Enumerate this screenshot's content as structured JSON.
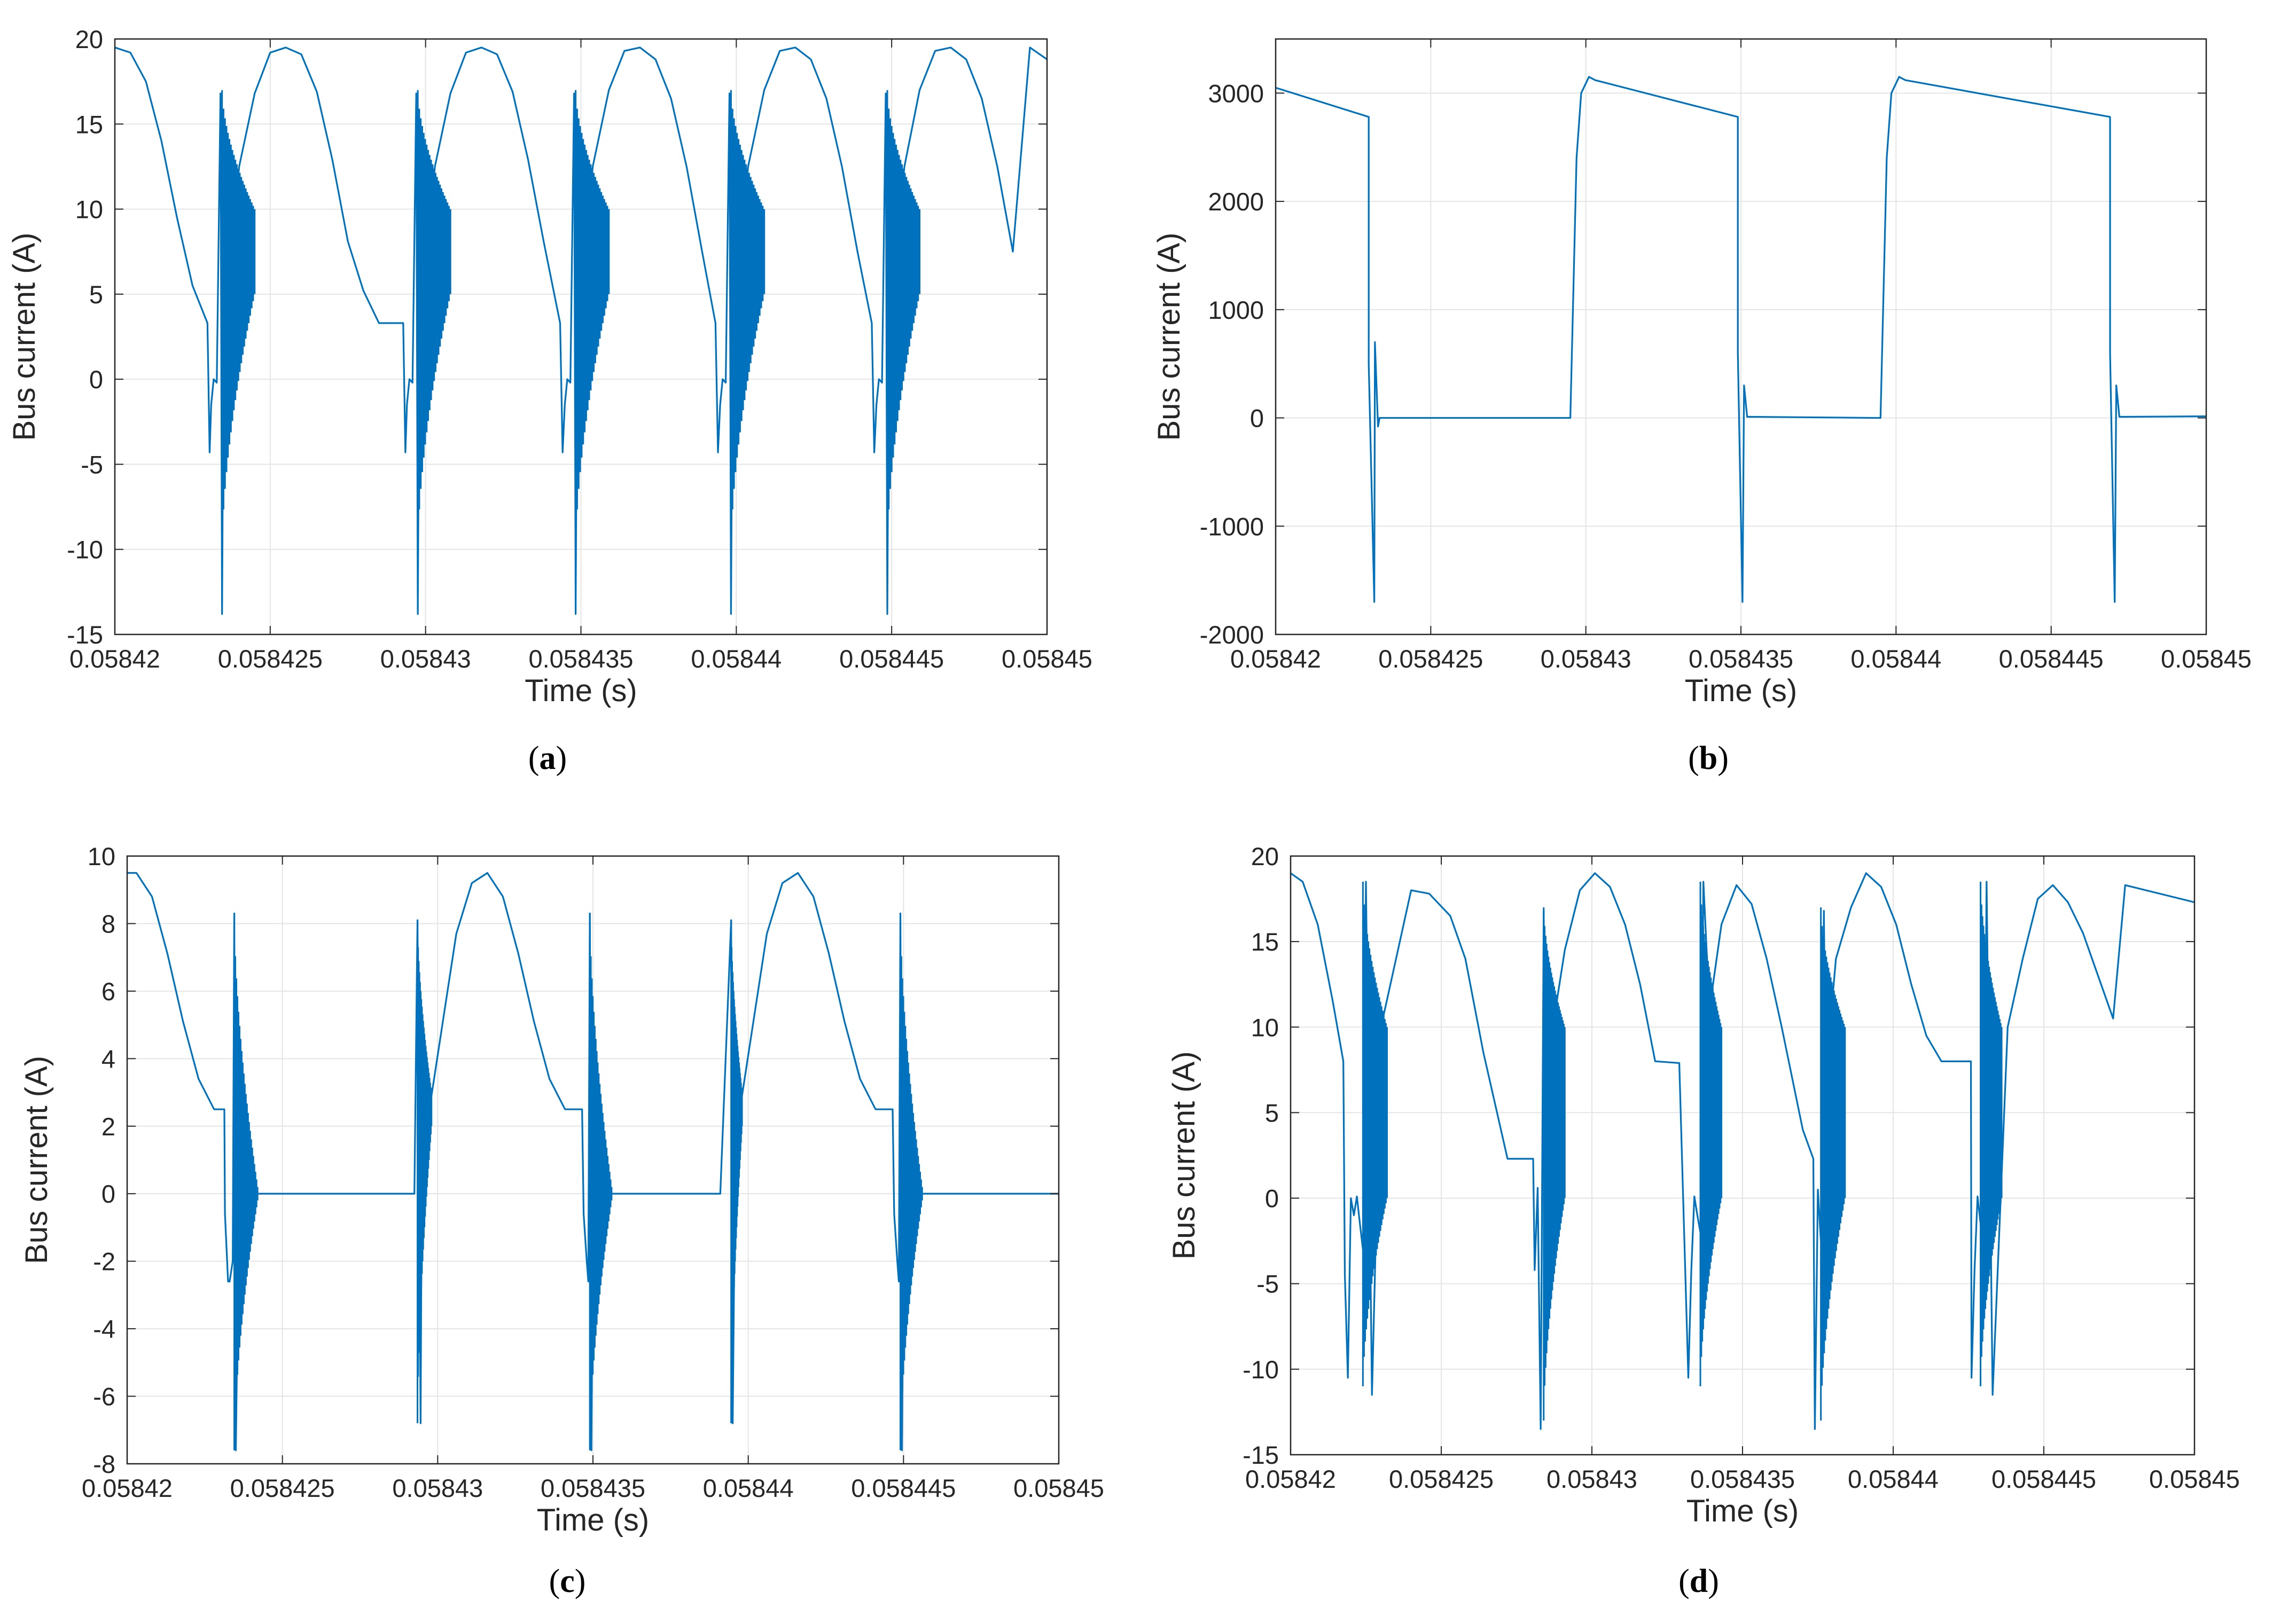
{
  "figure": {
    "colors": {
      "line": "#0072BD",
      "grid": "#e5e5e5",
      "axis": "#262626",
      "background": "#ffffff"
    }
  },
  "chart_data": [
    {
      "panel_label": "(a)",
      "type": "line",
      "xlabel": "Time (s)",
      "ylabel": "Bus current (A)",
      "xlim": [
        0.05842,
        0.05845
      ],
      "ylim": [
        -15,
        20
      ],
      "xticks": [
        0.05842,
        0.058425,
        0.05843,
        0.058435,
        0.05844,
        0.058445,
        0.05845
      ],
      "xtick_labels": [
        "0.05842",
        "0.058425",
        "0.05843",
        "0.058435",
        "0.05844",
        "0.058445",
        "0.05845"
      ],
      "yticks": [
        -15,
        -10,
        -5,
        0,
        5,
        10,
        15,
        20
      ],
      "ytick_labels": [
        "-15",
        "-10",
        "-5",
        "0",
        "5",
        "10",
        "15",
        "20"
      ],
      "grid": true,
      "series": [
        {
          "name": "Bus current",
          "x": [
            0.05842,
            0.0584205,
            0.058421,
            0.0584215,
            0.058422,
            0.0584225,
            0.05842298,
            0.05842305,
            0.0584231,
            0.05842318,
            0.05842328,
            0.0584234,
            0.05842345,
            0.0584235,
            0.0584236,
            0.0584238,
            0.058424,
            0.0584245,
            0.058425,
            0.0584255,
            0.058426,
            0.0584265,
            0.058427,
            0.0584275,
            0.058428,
            0.0584285,
            0.05842928,
            0.05842935,
            0.0584294,
            0.05842948,
            0.05842958,
            0.0584297,
            0.05842975,
            0.0584298,
            0.0584299,
            0.0584301,
            0.0584303,
            0.0584308,
            0.0584313,
            0.0584318,
            0.0584323,
            0.0584328,
            0.0584333,
            0.0584338,
            0.05843433,
            0.05843441,
            0.05843448,
            0.05843456,
            0.05843466,
            0.05843478,
            0.05843483,
            0.05843488,
            0.05843498,
            0.05843518,
            0.05843538,
            0.0584359,
            0.0584364,
            0.0584369,
            0.0584374,
            0.0584379,
            0.0584384,
            0.0584389,
            0.05843933,
            0.05843941,
            0.05843948,
            0.05843956,
            0.05843966,
            0.05843978,
            0.05843983,
            0.05843988,
            0.05843998,
            0.05844018,
            0.05844038,
            0.0584409,
            0.0584414,
            0.0584419,
            0.0584424,
            0.0584429,
            0.0584434,
            0.0584439,
            0.05844436,
            0.05844444,
            0.05844451,
            0.05844459,
            0.05844469,
            0.05844481,
            0.05844486,
            0.05844491,
            0.05844501,
            0.05844521,
            0.05844541,
            0.0584459,
            0.0584464,
            0.0584469,
            0.0584474,
            0.0584479,
            0.0584484,
            0.0584489,
            0.05844945,
            0.05845
          ],
          "y": [
            19.5,
            19.2,
            17.5,
            14,
            9.5,
            5.5,
            3.3,
            -4.3,
            -1.5,
            0,
            -0.2,
            16.8,
            -13.8,
            3.5,
            10,
            8.6,
            12.5,
            16.8,
            19.2,
            19.5,
            19.1,
            16.9,
            12.9,
            8.1,
            5.2,
            3.3,
            3.3,
            -4.3,
            -1.5,
            0,
            -0.2,
            16.8,
            -13.8,
            3.5,
            10,
            8.6,
            12.5,
            16.8,
            19.2,
            19.5,
            19.1,
            16.9,
            12.9,
            8.1,
            3.3,
            -4.3,
            -1.5,
            0,
            -0.2,
            16.8,
            -13.8,
            3.5,
            10,
            8.6,
            12.5,
            17,
            19.3,
            19.5,
            18.8,
            16.5,
            12.5,
            7.5,
            3.3,
            -4.3,
            -1.5,
            0,
            -0.2,
            16.8,
            -13.8,
            3.5,
            10,
            8.6,
            12.5,
            17,
            19.3,
            19.5,
            18.8,
            16.5,
            12.5,
            7.5,
            3.3,
            -4.3,
            -1.5,
            0,
            -0.2,
            16.8,
            -13.8,
            3.5,
            10,
            8.6,
            12.5,
            17,
            19.3,
            19.5,
            18.8,
            16.5,
            12.5,
            7.5,
            19.5,
            18.8
          ]
        }
      ],
      "oscillation_bands": [
        {
          "x0": 0.05842345,
          "x1": 0.0584245,
          "low": [
            -10,
            5
          ],
          "high": [
            17,
            10
          ]
        },
        {
          "x0": 0.05842975,
          "x1": 0.0584308,
          "low": [
            -10,
            5
          ],
          "high": [
            17,
            10
          ]
        },
        {
          "x0": 0.05843483,
          "x1": 0.0584359,
          "low": [
            -10,
            5
          ],
          "high": [
            17,
            10
          ]
        },
        {
          "x0": 0.05843983,
          "x1": 0.0584409,
          "low": [
            -10,
            5
          ],
          "high": [
            17,
            10
          ]
        },
        {
          "x0": 0.05844486,
          "x1": 0.0584459,
          "low": [
            -10,
            5
          ],
          "high": [
            17,
            10
          ]
        }
      ]
    },
    {
      "panel_label": "(b)",
      "type": "line",
      "xlabel": "Time (s)",
      "ylabel": "Bus current (A)",
      "xlim": [
        0.05842,
        0.05845
      ],
      "ylim": [
        -2000,
        3500
      ],
      "xticks": [
        0.05842,
        0.058425,
        0.05843,
        0.058435,
        0.05844,
        0.058445,
        0.05845
      ],
      "xtick_labels": [
        "0.05842",
        "0.058425",
        "0.05843",
        "0.058435",
        "0.05844",
        "0.058445",
        "0.05845"
      ],
      "yticks": [
        -2000,
        -1000,
        0,
        1000,
        2000,
        3000
      ],
      "ytick_labels": [
        "-2000",
        "-1000",
        "0",
        "1000",
        "2000",
        "3000"
      ],
      "grid": true,
      "series": [
        {
          "name": "Bus current",
          "x": [
            0.05842,
            0.058423,
            0.0584230001,
            0.05842318,
            0.0584232,
            0.0584233,
            0.05842335,
            0.0584235,
            0.0584294,
            0.0584295,
            0.0584296,
            0.0584297,
            0.05842985,
            0.0584301,
            0.0584303,
            0.0584349,
            0.0584349001,
            0.05843505,
            0.0584351,
            0.0584352,
            0.0584354,
            0.0584394,
            0.0584395,
            0.0584396,
            0.0584397,
            0.05843985,
            0.0584401,
            0.0584403,
            0.0584469,
            0.0584469001,
            0.05844705,
            0.0584471,
            0.0584472,
            0.0584474,
            0.05845
          ],
          "y": [
            3050,
            2780,
            500,
            -1700,
            700,
            -80,
            0,
            0,
            0,
            0,
            1200,
            2400,
            3000,
            3150,
            3120,
            2780,
            600,
            -1700,
            300,
            10,
            10,
            0,
            0,
            1200,
            2400,
            3000,
            3150,
            3120,
            2780,
            600,
            -1700,
            300,
            10,
            10,
            15
          ]
        }
      ],
      "oscillation_bands": []
    },
    {
      "panel_label": "(c)",
      "type": "line",
      "xlabel": "Time (s)",
      "ylabel": "Bus current (A)",
      "xlim": [
        0.05842,
        0.05845
      ],
      "ylim": [
        -8,
        10
      ],
      "xticks": [
        0.05842,
        0.058425,
        0.05843,
        0.058435,
        0.05844,
        0.058445,
        0.05845
      ],
      "xtick_labels": [
        "0.05842",
        "0.058425",
        "0.05843",
        "0.058435",
        "0.05844",
        "0.058445",
        "0.05845"
      ],
      "yticks": [
        -8,
        -6,
        -4,
        -2,
        0,
        2,
        4,
        6,
        8,
        10
      ],
      "ytick_labels": [
        "-8",
        "-6",
        "-4",
        "-2",
        "0",
        "2",
        "4",
        "6",
        "8",
        "10"
      ],
      "grid": true,
      "series": [
        {
          "name": "Bus current",
          "x": [
            0.05842,
            0.0584203,
            0.0584208,
            0.0584213,
            0.0584218,
            0.0584223,
            0.0584228,
            0.05842313,
            0.05842315,
            0.0584232,
            0.05842325,
            0.0584233,
            0.0584234,
            0.05842345,
            0.0584235,
            0.0584236,
            0.0584238,
            0.0584242,
            0.0584246,
            0.0584252,
            0.0584262,
            0.0584272,
            0.0584282,
            0.0584289,
            0.05842925,
            0.05842935,
            0.05842945,
            0.0584295,
            0.0584296,
            0.0584298,
            0.0584302,
            0.0584306,
            0.0584311,
            0.0584316,
            0.0584321,
            0.0584326,
            0.0584331,
            0.0584336,
            0.0584341,
            0.05843465,
            0.0584347,
            0.0584348,
            0.05843485,
            0.0584349,
            0.05843495,
            0.058435,
            0.0584352,
            0.0584356,
            0.058436,
            0.0584366,
            0.0584376,
            0.0584386,
            0.0584391,
            0.05843945,
            0.0584395,
            0.0584396,
            0.0584398,
            0.0584402,
            0.0584406,
            0.0584411,
            0.0584416,
            0.0584421,
            0.0584426,
            0.0584431,
            0.0584436,
            0.0584441,
            0.05844465,
            0.0584447,
            0.0584448,
            0.05844485,
            0.0584449,
            0.05844495,
            0.058445,
            0.0584452,
            0.0584456,
            0.058446,
            0.0584466,
            0.05845
          ],
          "y": [
            9.5,
            9.5,
            8.8,
            7.1,
            5.1,
            3.4,
            2.5,
            2.5,
            -0.6,
            -1.6,
            -2.6,
            -2.6,
            -2,
            8.3,
            -7.6,
            -0.5,
            -0.1,
            0,
            0,
            0,
            0,
            0,
            0,
            0,
            0,
            8.1,
            -6.8,
            3,
            2.6,
            2.9,
            5.3,
            7.7,
            9.2,
            9.5,
            8.8,
            7.1,
            5.1,
            3.4,
            2.5,
            2.5,
            -0.6,
            -2,
            -2.6,
            8.3,
            -7.6,
            -0.5,
            -0.1,
            0,
            0,
            0,
            0,
            0,
            0,
            8.1,
            -6.8,
            3,
            2.9,
            5.3,
            7.7,
            9.2,
            9.5,
            8.8,
            7.1,
            5.1,
            3.4,
            2.5,
            2.5,
            -0.6,
            -2,
            -2.6,
            8.3,
            -7.6,
            -0.5,
            -0.1,
            0,
            0,
            0,
            0
          ]
        }
      ],
      "oscillation_bands": [
        {
          "x0": 0.05842345,
          "x1": 0.0584242,
          "low": [
            -7.6,
            -0.2
          ],
          "high": [
            8.3,
            0.2
          ]
        },
        {
          "x0": 0.05842935,
          "x1": 0.0584298,
          "low": [
            -6.8,
            2
          ],
          "high": [
            8.1,
            3
          ]
        },
        {
          "x0": 0.0584349,
          "x1": 0.0584356,
          "low": [
            -7.6,
            -0.2
          ],
          "high": [
            8.3,
            0.2
          ]
        },
        {
          "x0": 0.05843945,
          "x1": 0.0584398,
          "low": [
            -6.8,
            2
          ],
          "high": [
            8.1,
            3
          ]
        },
        {
          "x0": 0.0584449,
          "x1": 0.0584456,
          "low": [
            -7.6,
            -0.2
          ],
          "high": [
            8.3,
            0.2
          ]
        }
      ]
    },
    {
      "panel_label": "(d)",
      "type": "line",
      "xlabel": "Time (s)",
      "ylabel": "Bus current (A)",
      "xlim": [
        0.05842,
        0.05845
      ],
      "ylim": [
        -15,
        20
      ],
      "xticks": [
        0.05842,
        0.058425,
        0.05843,
        0.058435,
        0.05844,
        0.058445,
        0.05845
      ],
      "xtick_labels": [
        "0.05842",
        "0.058425",
        "0.05843",
        "0.058435",
        "0.05844",
        "0.058445",
        "0.05845"
      ],
      "yticks": [
        -15,
        -10,
        -5,
        0,
        5,
        10,
        15,
        20
      ],
      "ytick_labels": [
        "-15",
        "-10",
        "-5",
        "0",
        "5",
        "10",
        "15",
        "20"
      ],
      "grid": true,
      "series": [
        {
          "name": "Bus current",
          "x": [
            0.05842,
            0.0584204,
            0.0584209,
            0.0584214,
            0.05842175,
            0.0584218,
            0.0584219,
            0.058422,
            0.0584221,
            0.0584222,
            0.0584223,
            0.0584224,
            0.0584225,
            0.0584227,
            0.058423,
            0.0584235,
            0.058424,
            0.0584246,
            0.0584253,
            0.0584258,
            0.0584264,
            0.0584272,
            0.05842805,
            0.0584281,
            0.0584282,
            0.0584283,
            0.0584284,
            0.0584285,
            0.0584287,
            0.0584291,
            0.0584296,
            0.0584301,
            0.0584306,
            0.0584311,
            0.0584316,
            0.0584321,
            0.0584329,
            0.0584332,
            0.0584333,
            0.0584334,
            0.0584335,
            0.0584336,
            0.0584337,
            0.0584339,
            0.0584343,
            0.0584348,
            0.0584353,
            0.0584358,
            0.0584363,
            0.058437,
            0.05843735,
            0.0584374,
            0.0584375,
            0.0584376,
            0.0584377,
            0.0584378,
            0.0584379,
            0.0584381,
            0.0584386,
            0.0584391,
            0.0584396,
            0.0584401,
            0.0584406,
            0.0584411,
            0.0584416,
            0.0584421,
            0.05844258,
            0.0584426,
            0.0584427,
            0.0584428,
            0.0584429,
            0.058443,
            0.0584431,
            0.0584433,
            0.0584438,
            0.0584443,
            0.0584448,
            0.0584453,
            0.0584458,
            0.0584463,
            0.0584468,
            0.0584473,
            0.0584477,
            0.05845
          ],
          "y": [
            19,
            18.5,
            16,
            11.5,
            8,
            -4.5,
            -10.5,
            0,
            -1,
            0.1,
            -1.5,
            -3,
            18.5,
            -11.5,
            10,
            14,
            18,
            17.8,
            16.5,
            14,
            8.5,
            2.3,
            2.3,
            -4.2,
            0.6,
            -13.5,
            16.8,
            -2.5,
            10,
            14.5,
            18,
            19,
            18.2,
            16,
            12.5,
            8,
            7.9,
            -10.5,
            -4.2,
            0.1,
            -1,
            -2,
            18.5,
            11,
            16,
            18.3,
            17.2,
            14,
            10,
            4,
            2.3,
            -13.5,
            0.5,
            -2.5,
            16.8,
            -1.5,
            10,
            14,
            17,
            19,
            18.2,
            16,
            12.5,
            9.5,
            8,
            8,
            8,
            -10.5,
            -4.2,
            0.1,
            -1.5,
            -3,
            18.5,
            -11.5,
            10,
            14,
            17.5,
            18.3,
            17.3,
            15.5,
            13,
            10.5,
            18.3,
            17.3
          ]
        }
      ],
      "oscillation_bands": [
        {
          "x0": 0.0584224,
          "x1": 0.0584232,
          "low": [
            -11,
            0
          ],
          "high": [
            18.5,
            10
          ]
        },
        {
          "x0": 0.0584284,
          "x1": 0.0584291,
          "low": [
            -13,
            0
          ],
          "high": [
            17,
            10
          ]
        },
        {
          "x0": 0.0584336,
          "x1": 0.0584343,
          "low": [
            -11,
            0
          ],
          "high": [
            18.5,
            10
          ]
        },
        {
          "x0": 0.0584376,
          "x1": 0.0584384,
          "low": [
            -13,
            0
          ],
          "high": [
            17,
            10
          ]
        },
        {
          "x0": 0.0584429,
          "x1": 0.0584436,
          "low": [
            -11,
            0
          ],
          "high": [
            18.5,
            10
          ]
        }
      ]
    }
  ]
}
